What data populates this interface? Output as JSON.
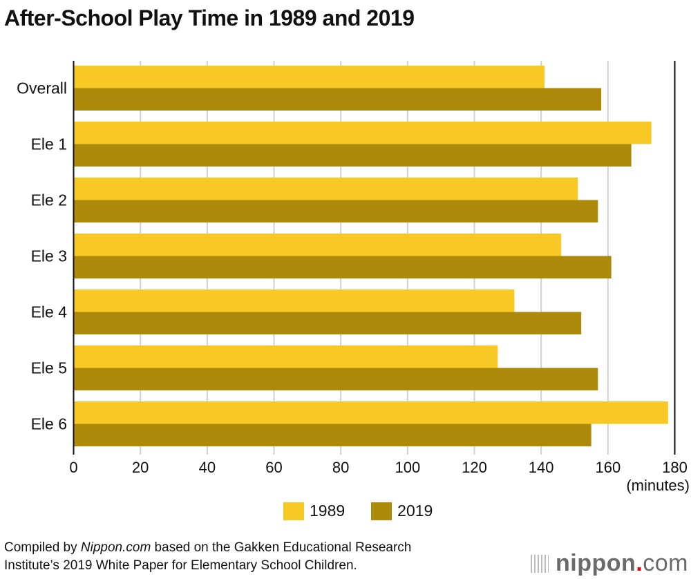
{
  "chart_data": {
    "type": "bar",
    "orientation": "horizontal",
    "title": "After-School Play Time in 1989 and 2019",
    "categories": [
      "Overall",
      "Ele 1",
      "Ele 2",
      "Ele 3",
      "Ele 4",
      "Ele 5",
      "Ele 6"
    ],
    "series": [
      {
        "name": "1989",
        "color": "#F8C925",
        "values": [
          141,
          173,
          151,
          146,
          132,
          127,
          178
        ]
      },
      {
        "name": "2019",
        "color": "#AE8A0B",
        "values": [
          158,
          167,
          157,
          161,
          152,
          157,
          155
        ]
      }
    ],
    "xlabel": "(minutes)",
    "xlim": [
      0,
      180
    ],
    "xticks": [
      "0",
      "20",
      "40",
      "60",
      "80",
      "100",
      "120",
      "140",
      "160",
      "180"
    ],
    "grid": true,
    "legend": "bottom-center"
  },
  "footer": {
    "source_prefix": "Compiled by ",
    "source_site": "Nippon.com",
    "source_rest": " based on the Gakken Educational Research",
    "source_line2": "Institute’s 2019 White Paper for Elementary School Children.",
    "logo": "nippon.com"
  }
}
